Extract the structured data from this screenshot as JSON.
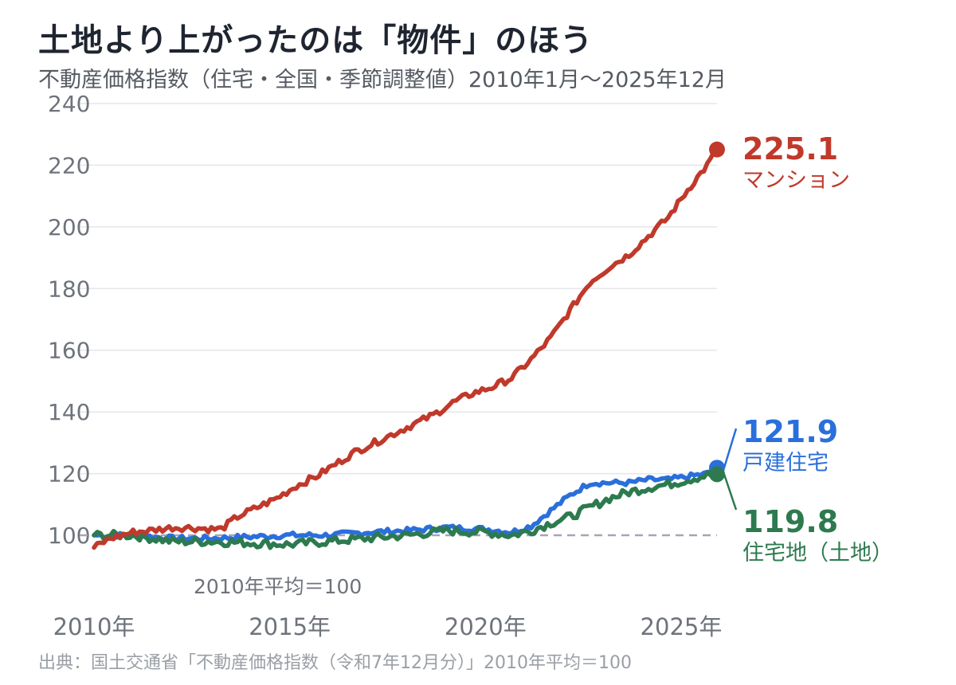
{
  "title": "土地より上がったのは「物件」のほう",
  "subtitle": "不動産価格指数（住宅・全国・季節調整値）2010年1月〜2025年12月",
  "source": "出典：国土交通省「不動産価格指数（令和7年12月分）」2010年平均＝100",
  "chart_data": {
    "type": "line",
    "ylim": [
      92,
      240
    ],
    "y_ticks": [
      "240",
      "220",
      "200",
      "180",
      "160",
      "140",
      "120",
      "100"
    ],
    "x_range": [
      "2010-01",
      "2025-12"
    ],
    "x_ticks": [
      {
        "date": "2010-01",
        "label": "2010年"
      },
      {
        "date": "2015-01",
        "label": "2015年"
      },
      {
        "date": "2020-01",
        "label": "2020年"
      },
      {
        "date": "2025-01",
        "label": "2025年"
      }
    ],
    "grid": true,
    "reference_line": {
      "value": 100,
      "label": "2010年平均＝100"
    },
    "series": [
      {
        "name": "マンション",
        "color": "#c0392b",
        "end_label": "225.1",
        "points": [
          [
            "2010-01",
            96
          ],
          [
            "2010-06",
            99
          ],
          [
            "2011-01",
            101
          ],
          [
            "2011-06",
            101.5
          ],
          [
            "2012-01",
            102.5
          ],
          [
            "2012-06",
            102.5
          ],
          [
            "2013-01",
            102
          ],
          [
            "2013-04",
            102
          ],
          [
            "2013-09",
            106
          ],
          [
            "2014-03",
            109
          ],
          [
            "2014-09",
            112
          ],
          [
            "2015-03",
            116
          ],
          [
            "2015-09",
            119
          ],
          [
            "2016-03",
            123
          ],
          [
            "2016-09",
            127
          ],
          [
            "2017-03",
            130
          ],
          [
            "2017-09",
            133
          ],
          [
            "2018-03",
            136
          ],
          [
            "2018-09",
            139
          ],
          [
            "2019-03",
            143
          ],
          [
            "2019-09",
            146
          ],
          [
            "2020-03",
            148
          ],
          [
            "2020-09",
            151
          ],
          [
            "2021-03",
            157
          ],
          [
            "2021-09",
            164
          ],
          [
            "2022-03",
            173
          ],
          [
            "2022-09",
            182
          ],
          [
            "2023-03",
            187
          ],
          [
            "2023-09",
            191
          ],
          [
            "2024-03",
            197
          ],
          [
            "2024-09",
            203
          ],
          [
            "2025-03",
            212
          ],
          [
            "2025-09",
            220
          ],
          [
            "2025-12",
            225.1
          ]
        ]
      },
      {
        "name": "戸建住宅",
        "color": "#2a6fdb",
        "end_label": "121.9",
        "points": [
          [
            "2010-01",
            100
          ],
          [
            "2011-01",
            100
          ],
          [
            "2012-01",
            99
          ],
          [
            "2013-01",
            99
          ],
          [
            "2014-01",
            99.5
          ],
          [
            "2015-01",
            100
          ],
          [
            "2016-01",
            100
          ],
          [
            "2017-01",
            101
          ],
          [
            "2018-01",
            101.5
          ],
          [
            "2019-01",
            102.5
          ],
          [
            "2020-01",
            102
          ],
          [
            "2020-09",
            101
          ],
          [
            "2021-03",
            103
          ],
          [
            "2021-09",
            108
          ],
          [
            "2022-03",
            113
          ],
          [
            "2022-09",
            117
          ],
          [
            "2023-03",
            117
          ],
          [
            "2023-09",
            117
          ],
          [
            "2024-03",
            118
          ],
          [
            "2024-09",
            118
          ],
          [
            "2025-03",
            119
          ],
          [
            "2025-09",
            120
          ],
          [
            "2025-12",
            121.9
          ]
        ]
      },
      {
        "name": "住宅地（土地）",
        "color": "#2d7a4f",
        "end_label": "119.8",
        "points": [
          [
            "2010-01",
            100
          ],
          [
            "2011-01",
            100
          ],
          [
            "2012-01",
            98
          ],
          [
            "2013-01",
            98
          ],
          [
            "2014-01",
            97.5
          ],
          [
            "2015-01",
            97
          ],
          [
            "2016-01",
            98
          ],
          [
            "2017-01",
            99
          ],
          [
            "2018-01",
            100
          ],
          [
            "2019-01",
            101.5
          ],
          [
            "2020-01",
            101
          ],
          [
            "2020-09",
            100
          ],
          [
            "2021-03",
            101.5
          ],
          [
            "2021-09",
            104
          ],
          [
            "2022-03",
            106
          ],
          [
            "2022-09",
            109
          ],
          [
            "2023-03",
            112
          ],
          [
            "2023-09",
            114
          ],
          [
            "2024-03",
            115.5
          ],
          [
            "2024-09",
            116.5
          ],
          [
            "2025-03",
            118
          ],
          [
            "2025-09",
            119.5
          ],
          [
            "2025-12",
            119.8
          ]
        ]
      }
    ]
  }
}
